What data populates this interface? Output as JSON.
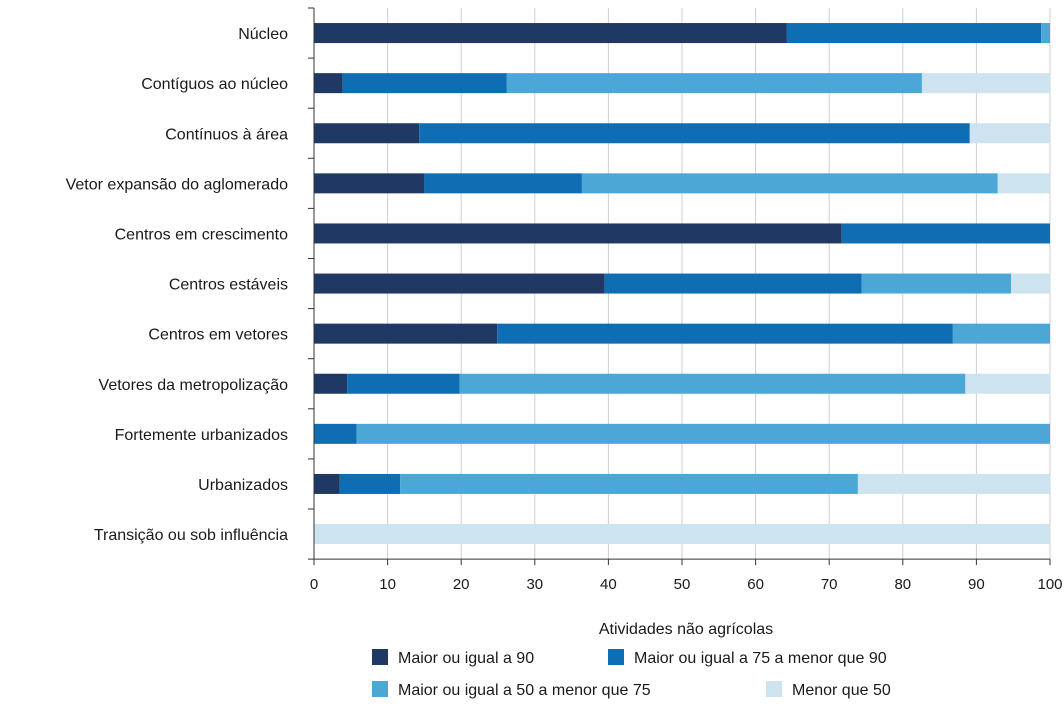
{
  "chart_data": {
    "type": "bar",
    "orientation": "horizontal",
    "stacked": true,
    "categories": [
      "Núcleo",
      "Contíguos ao núcleo",
      "Contínuos à área",
      "Vetor expansão do aglomerado",
      "Centros em crescimento",
      "Centros estáveis",
      "Centros em vetores",
      "Vetores da metropolização",
      "Fortemente urbanizados",
      "Urbanizados",
      "Transição ou sob influência"
    ],
    "series": [
      {
        "name": "Maior ou igual a 90",
        "color": "#1f3864",
        "values": [
          64.2,
          3.9,
          14.3,
          15.0,
          71.7,
          39.5,
          24.9,
          4.5,
          0,
          3.5,
          0
        ]
      },
      {
        "name": "Maior ou igual a 75 a menor que  90",
        "color": "#0f6db4",
        "values": [
          34.6,
          22.3,
          74.8,
          21.4,
          28.3,
          34.9,
          61.9,
          15.3,
          5.8,
          8.2,
          0
        ]
      },
      {
        "name": "Maior ou igual a 50 a menor que 75",
        "color": "#4ba7d6",
        "values": [
          1.2,
          56.4,
          0,
          56.5,
          0,
          20.3,
          13.2,
          68.7,
          94.2,
          62.2,
          0
        ]
      },
      {
        "name": "Menor que 50",
        "color": "#cde4f0",
        "values": [
          0,
          17.4,
          10.9,
          7.1,
          0,
          5.3,
          0,
          11.5,
          0,
          26.1,
          100
        ]
      }
    ],
    "xlabel": "Atividades não agrícolas",
    "xlim": [
      0,
      100
    ],
    "xticks": [
      "0",
      "10",
      "20",
      "30",
      "40",
      "50",
      "60",
      "70",
      "80",
      "90",
      "100"
    ],
    "grid": "vertical",
    "legend_position": "bottom"
  }
}
